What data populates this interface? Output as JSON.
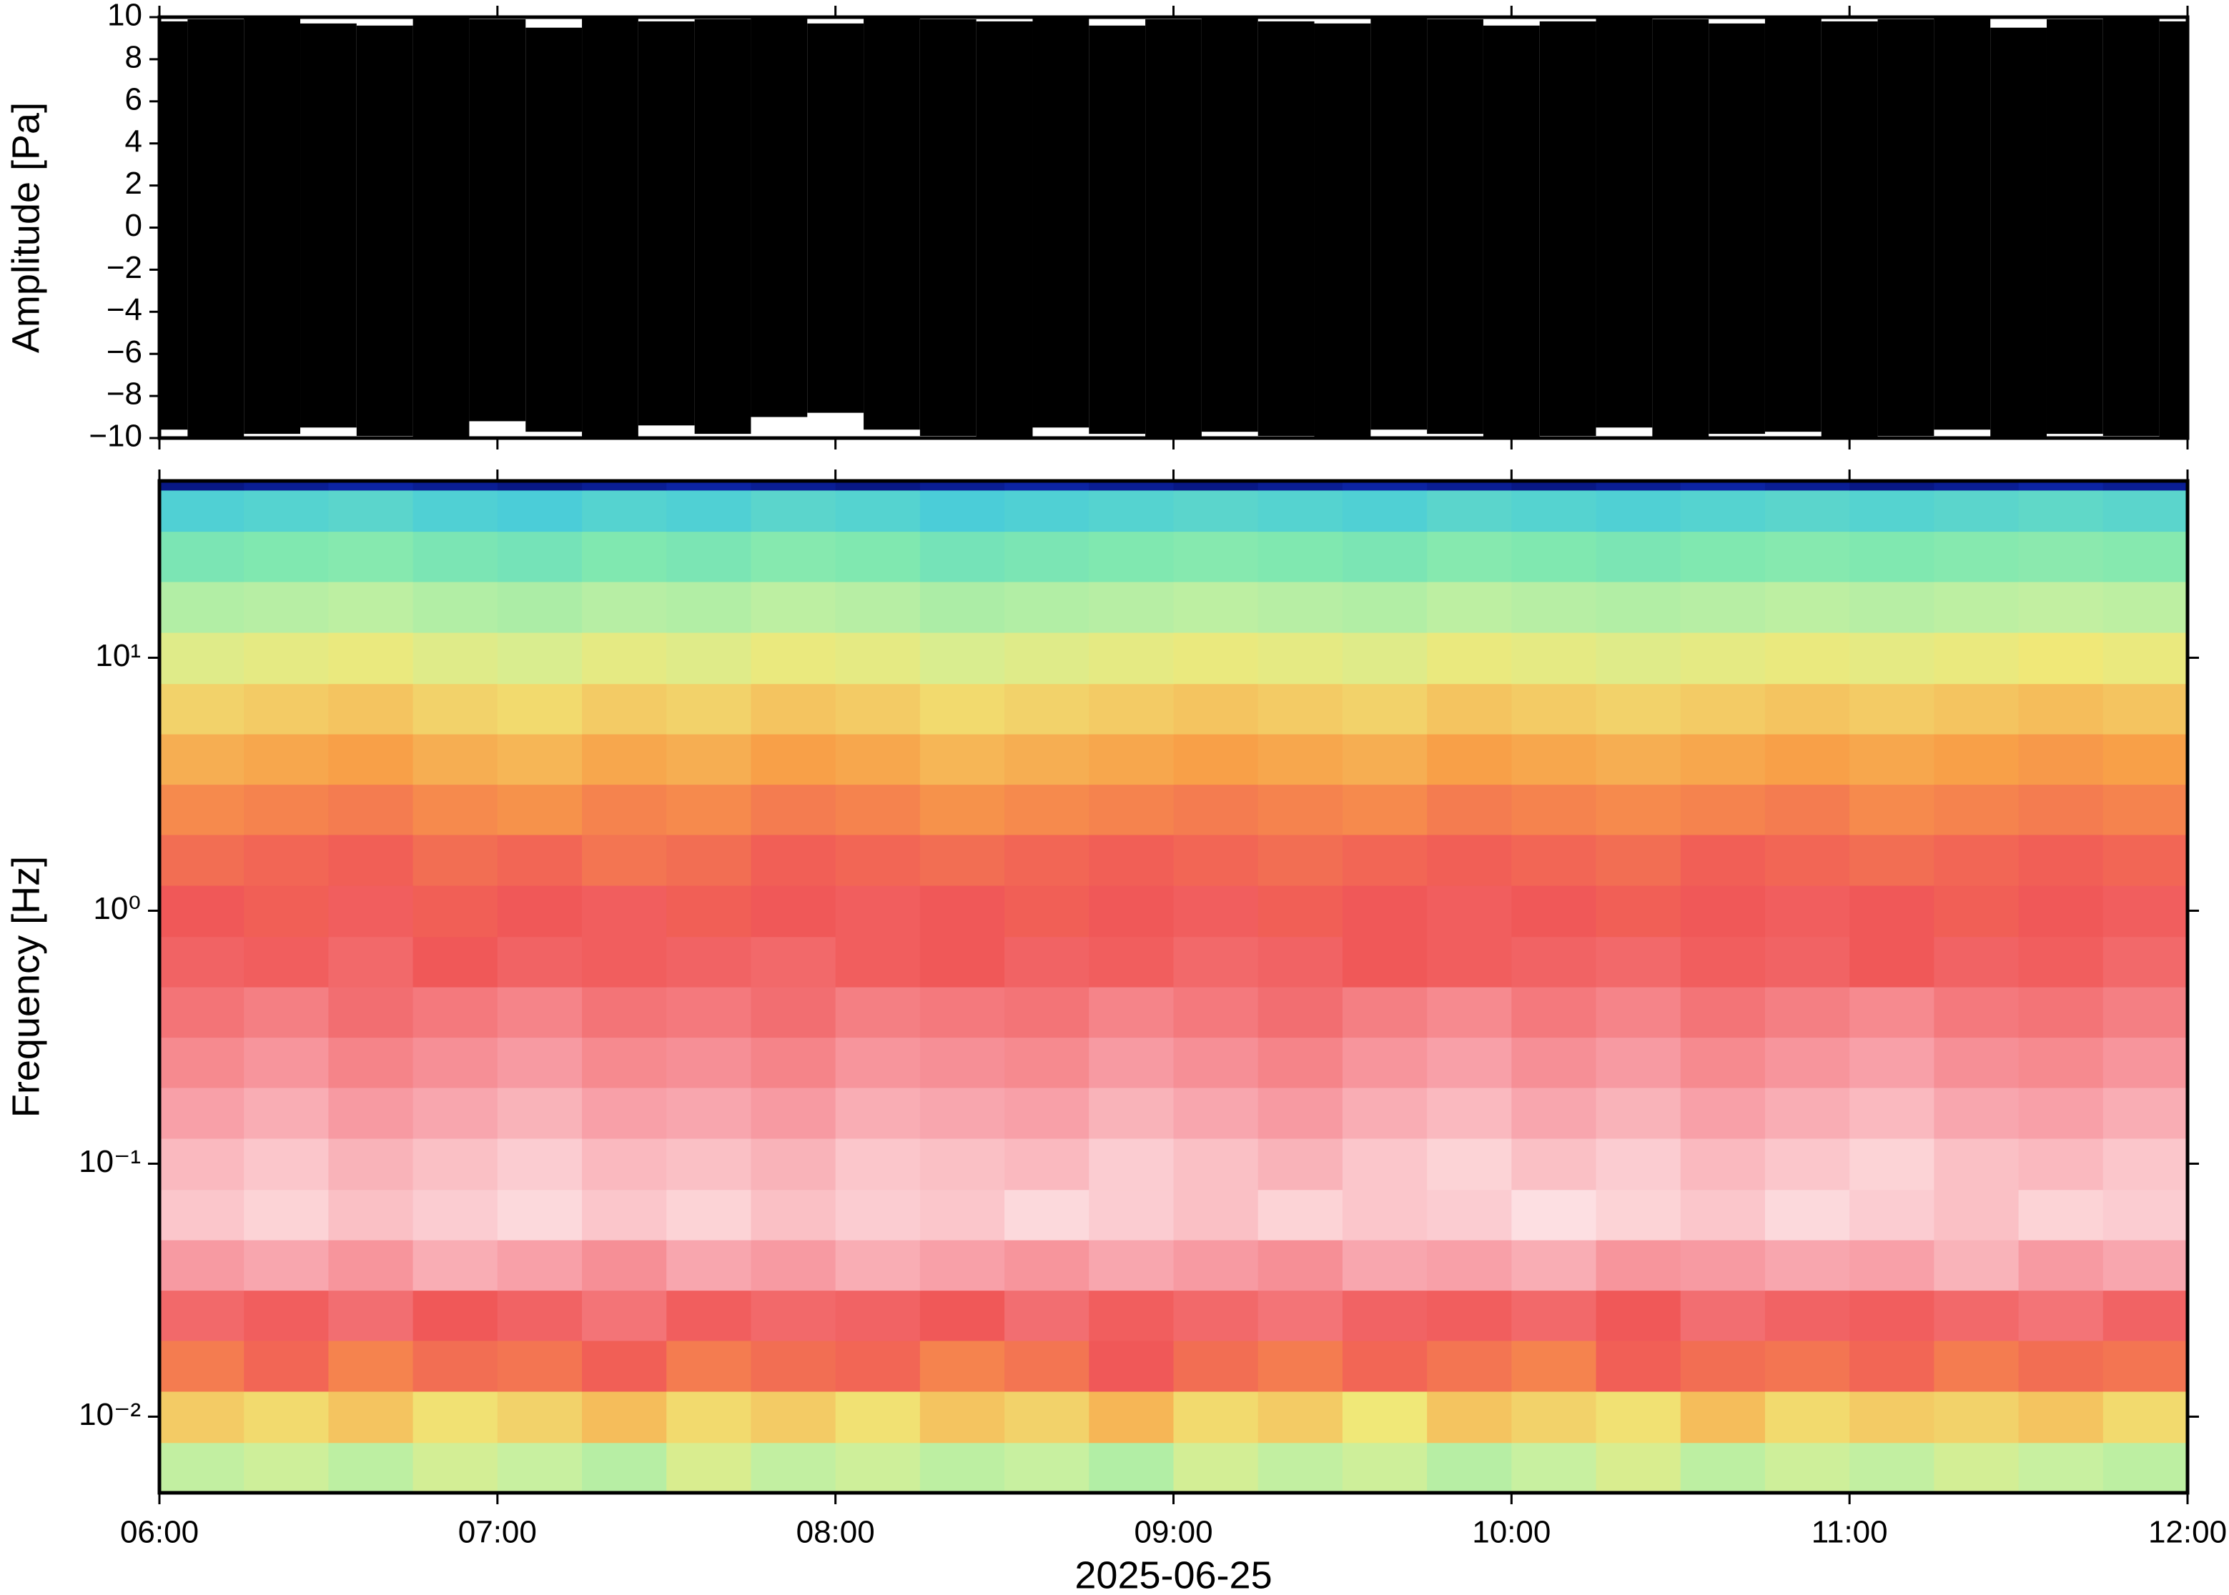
{
  "chart_data": [
    {
      "type": "envelope",
      "ylabel": "Amplitude [Pa]",
      "xlim": [
        "06:00",
        "12:00"
      ],
      "ylim": [
        -10,
        10
      ],
      "yticks": [
        {
          "value": -10,
          "label": "−10"
        },
        {
          "value": -8,
          "label": "−8"
        },
        {
          "value": -6,
          "label": "−6"
        },
        {
          "value": -4,
          "label": "−4"
        },
        {
          "value": -2,
          "label": "−2"
        },
        0,
        2,
        4,
        6,
        8,
        10
      ],
      "color": "#000000",
      "x": [
        "06:00",
        "06:10",
        "06:20",
        "06:30",
        "06:40",
        "06:50",
        "07:00",
        "07:10",
        "07:20",
        "07:30",
        "07:40",
        "07:50",
        "08:00",
        "08:10",
        "08:20",
        "08:30",
        "08:40",
        "08:50",
        "09:00",
        "09:10",
        "09:20",
        "09:30",
        "09:40",
        "09:50",
        "10:00",
        "10:10",
        "10:20",
        "10:30",
        "10:40",
        "10:50",
        "11:00",
        "11:10",
        "11:20",
        "11:30",
        "11:40",
        "11:50",
        "12:00"
      ],
      "upper": [
        9.8,
        9.9,
        10,
        9.7,
        9.6,
        10,
        9.9,
        9.5,
        10,
        9.8,
        9.9,
        10,
        9.7,
        10,
        9.9,
        9.8,
        10,
        9.6,
        9.9,
        10,
        9.8,
        9.7,
        10,
        9.9,
        9.6,
        9.8,
        10,
        9.9,
        9.7,
        10,
        9.8,
        9.9,
        10,
        9.5,
        9.9,
        10,
        9.8
      ],
      "lower": [
        -9.6,
        -10,
        -9.8,
        -9.5,
        -9.9,
        -10,
        -9.2,
        -9.7,
        -10,
        -9.4,
        -9.8,
        -9,
        -8.8,
        -9.6,
        -9.9,
        -10,
        -9.5,
        -9.8,
        -10,
        -9.7,
        -9.9,
        -10,
        -9.6,
        -9.8,
        -10,
        -9.9,
        -9.5,
        -10,
        -9.8,
        -9.7,
        -10,
        -9.9,
        -9.6,
        -10,
        -9.8,
        -9.9,
        -10
      ]
    },
    {
      "type": "heatmap",
      "ylabel": "Frequency [Hz]",
      "xlabel": "2025-06-25",
      "log_y": true,
      "categories": [
        "06:00",
        "07:00",
        "08:00",
        "09:00",
        "10:00",
        "11:00",
        "12:00"
      ],
      "xlim": [
        "06:00",
        "12:00"
      ],
      "ylim": [
        0.005,
        50
      ],
      "yticks": [
        {
          "value": 0.01,
          "label": "10⁻²"
        },
        {
          "value": 0.1,
          "label": "10⁻¹"
        },
        {
          "value": 1,
          "label": "10⁰"
        },
        {
          "value": 10,
          "label": "10¹"
        }
      ],
      "x_edges": [
        "06:00",
        "06:15",
        "06:30",
        "06:45",
        "07:00",
        "07:15",
        "07:30",
        "07:45",
        "08:00",
        "08:15",
        "08:30",
        "08:45",
        "09:00",
        "09:15",
        "09:30",
        "09:45",
        "10:00",
        "10:15",
        "10:30",
        "10:45",
        "11:00",
        "11:15",
        "11:30",
        "11:45",
        "12:00"
      ],
      "y_edges": [
        0.005,
        0.0079,
        0.0126,
        0.02,
        0.0316,
        0.05,
        0.079,
        0.126,
        0.2,
        0.316,
        0.5,
        0.79,
        1.26,
        2,
        3.16,
        5,
        7.9,
        12.6,
        20,
        31.6,
        46,
        50
      ],
      "colormap": [
        {
          "value": 0,
          "color": "#00004a"
        },
        {
          "value": 8,
          "color": "#1030c0"
        },
        {
          "value": 20,
          "color": "#40c8e0"
        },
        {
          "value": 32,
          "color": "#80e8b0"
        },
        {
          "value": 45,
          "color": "#c8f0a0"
        },
        {
          "value": 52,
          "color": "#f0e878"
        },
        {
          "value": 62,
          "color": "#f8a048"
        },
        {
          "value": 72,
          "color": "#f05858"
        },
        {
          "value": 85,
          "color": "#f8a0a8"
        },
        {
          "value": 100,
          "color": "#ffffff"
        }
      ],
      "z": [
        [
          44,
          46,
          43,
          47,
          45,
          42,
          48,
          44,
          46,
          43,
          45,
          41,
          47,
          44,
          46,
          42,
          45,
          48,
          43,
          46,
          44,
          47,
          45,
          43
        ],
        [
          56,
          54,
          57,
          53,
          55,
          58,
          54,
          56,
          53,
          57,
          55,
          59,
          54,
          56,
          52,
          57,
          55,
          53,
          58,
          54,
          56,
          55,
          57,
          54
        ],
        [
          67,
          70,
          66,
          69,
          68,
          71,
          67,
          69,
          70,
          66,
          68,
          72,
          69,
          67,
          70,
          68,
          66,
          71,
          69,
          68,
          70,
          67,
          69,
          68
        ],
        [
          75,
          73,
          76,
          72,
          74,
          77,
          73,
          75,
          74,
          72,
          76,
          73,
          75,
          77,
          74,
          73,
          75,
          72,
          76,
          74,
          73,
          75,
          77,
          74
        ],
        [
          84,
          86,
          83,
          87,
          85,
          82,
          86,
          84,
          87,
          85,
          83,
          86,
          84,
          82,
          86,
          85,
          87,
          83,
          84,
          86,
          85,
          88,
          84,
          86
        ],
        [
          91,
          93,
          90,
          92,
          94,
          91,
          93,
          90,
          92,
          91,
          94,
          92,
          90,
          93,
          91,
          92,
          95,
          93,
          91,
          94,
          92,
          90,
          93,
          92
        ],
        [
          89,
          91,
          88,
          90,
          92,
          89,
          90,
          88,
          91,
          90,
          89,
          92,
          90,
          88,
          91,
          93,
          90,
          92,
          89,
          91,
          93,
          90,
          89,
          91
        ],
        [
          85,
          87,
          84,
          86,
          88,
          85,
          86,
          84,
          87,
          86,
          85,
          88,
          86,
          84,
          87,
          89,
          86,
          88,
          85,
          87,
          89,
          86,
          85,
          87
        ],
        [
          81,
          83,
          80,
          82,
          84,
          81,
          82,
          80,
          83,
          82,
          81,
          84,
          82,
          80,
          83,
          85,
          82,
          84,
          81,
          83,
          85,
          82,
          81,
          83
        ],
        [
          77,
          79,
          76,
          78,
          80,
          77,
          78,
          76,
          79,
          78,
          77,
          80,
          78,
          76,
          79,
          81,
          78,
          80,
          77,
          79,
          81,
          78,
          77,
          79
        ],
        [
          74,
          73,
          75,
          72,
          74,
          73,
          74,
          75,
          73,
          72,
          74,
          73,
          75,
          74,
          72,
          73,
          74,
          75,
          73,
          74,
          72,
          74,
          73,
          75
        ],
        [
          72,
          71,
          73,
          71,
          72,
          73,
          71,
          72,
          73,
          72,
          71,
          72,
          73,
          71,
          72,
          73,
          72,
          71,
          72,
          73,
          72,
          71,
          72,
          73
        ],
        [
          69,
          70,
          71,
          69,
          70,
          68,
          69,
          71,
          70,
          69,
          70,
          71,
          70,
          69,
          70,
          71,
          70,
          69,
          71,
          70,
          69,
          70,
          71,
          70
        ],
        [
          65,
          66,
          67,
          65,
          64,
          66,
          65,
          67,
          66,
          64,
          65,
          66,
          67,
          66,
          65,
          67,
          66,
          65,
          66,
          67,
          65,
          66,
          67,
          66
        ],
        [
          60,
          61,
          62,
          60,
          59,
          61,
          60,
          62,
          61,
          59,
          60,
          61,
          62,
          61,
          60,
          62,
          61,
          60,
          61,
          62,
          61,
          62,
          63,
          62
        ],
        [
          55,
          56,
          57,
          55,
          54,
          56,
          55,
          57,
          56,
          54,
          55,
          56,
          57,
          56,
          55,
          57,
          56,
          55,
          56,
          57,
          56,
          57,
          58,
          57
        ],
        [
          49,
          50,
          51,
          49,
          48,
          50,
          49,
          51,
          50,
          48,
          49,
          50,
          51,
          50,
          49,
          51,
          50,
          49,
          50,
          51,
          50,
          51,
          52,
          51
        ],
        [
          41,
          42,
          43,
          41,
          40,
          42,
          41,
          43,
          42,
          40,
          41,
          42,
          43,
          42,
          41,
          43,
          42,
          41,
          42,
          43,
          42,
          43,
          44,
          43
        ],
        [
          31,
          32,
          33,
          31,
          30,
          32,
          31,
          33,
          32,
          30,
          31,
          32,
          33,
          32,
          31,
          33,
          32,
          31,
          32,
          33,
          32,
          33,
          34,
          33
        ],
        [
          23,
          24,
          25,
          23,
          22,
          24,
          23,
          25,
          24,
          22,
          23,
          24,
          25,
          24,
          23,
          25,
          24,
          23,
          24,
          25,
          24,
          25,
          26,
          25
        ],
        [
          4,
          5,
          6,
          5,
          4,
          5,
          6,
          5,
          4,
          5,
          6,
          5,
          4,
          5,
          6,
          5,
          4,
          5,
          6,
          5,
          4,
          5,
          6,
          5
        ]
      ]
    }
  ]
}
